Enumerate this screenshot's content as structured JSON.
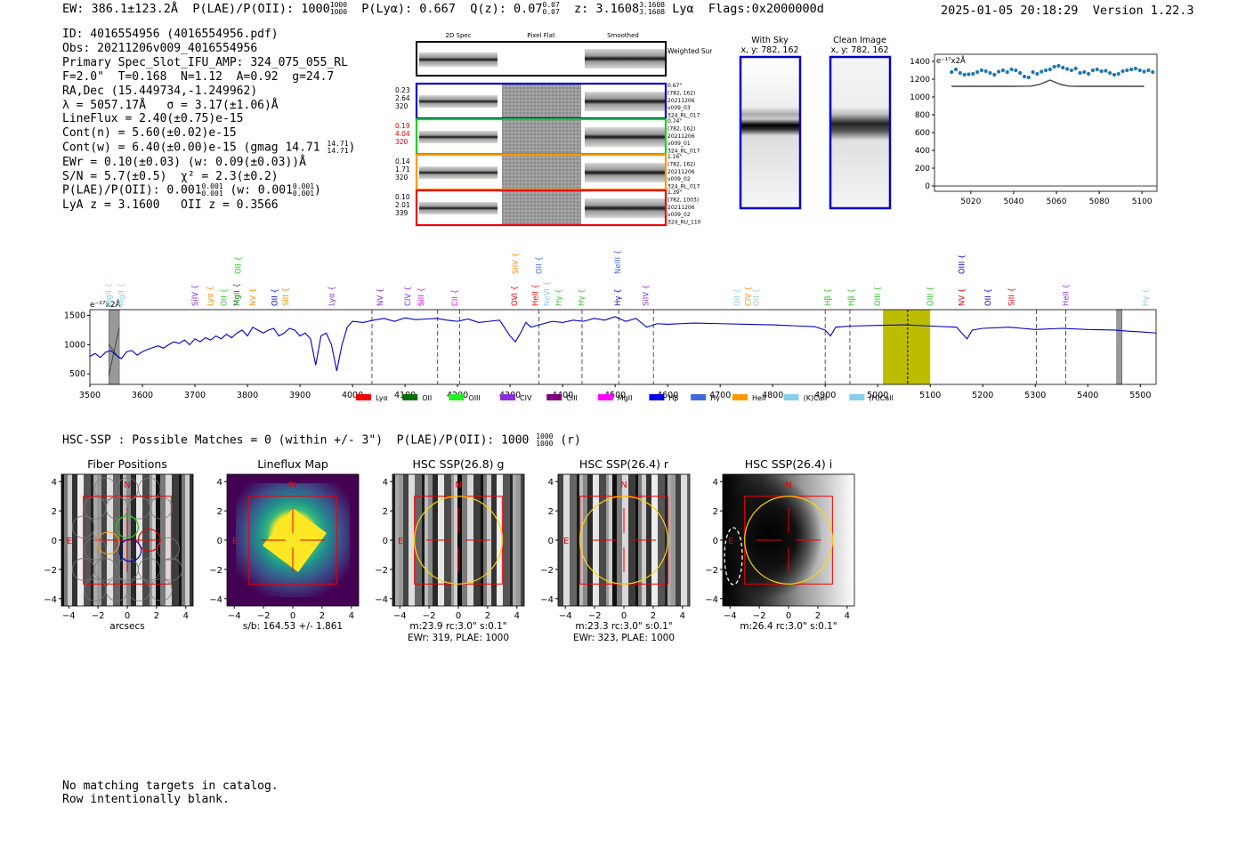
{
  "header": {
    "ew": "EW: 386.1±123.2Å",
    "plae_label": "P(LAE)/P(OII): 1000",
    "plae_hi": "1000",
    "plae_lo": "1000",
    "plya": "P(Lyα): 0.667",
    "qz_label": "Q(z): 0.07",
    "qz_hi": "0.07",
    "qz_lo": "0.07",
    "z_label": "z: 3.1608",
    "z_hi": "3.1608",
    "z_lo": "3.1608",
    "z_line": "Lyα",
    "flags": "Flags:0x2000000d",
    "timestamp": "2025-01-05 20:18:29",
    "version": "Version 1.22.3"
  },
  "info": {
    "id": "ID: 4016554956 (4016554956.pdf)",
    "obs": "Obs: 20211206v009_4016554956",
    "primary": "Primary Spec_Slot_IFU_AMP: 324_075_055_RL",
    "fwhm": "F=2.0\"  T=0.168  N=1.12  A=0.92  g=24.7",
    "radec": "RA,Dec (15.449734,-1.249962)",
    "lambda": "λ = 5057.17Å   σ = 3.17(±1.06)Å",
    "lineflux": "LineFlux = 2.40(±0.75)e-15",
    "contn": "Cont(n) = 5.60(±0.02)e-15",
    "contw": "Cont(w) = 6.40(±0.00)e-15 (gmag 14.71",
    "contw_hi": "14.71",
    "contw_lo": "14.71",
    "contw_end": ")",
    "ewr": "EWr = 0.10(±0.03) (w: 0.09(±0.03))Å",
    "sn": "S/N = 5.7(±0.5)  χ² = 2.3(±0.2)",
    "plae2": "P(LAE)/P(OII): 0.001",
    "plae2_hi": "0.001",
    "plae2_lo": "0.001",
    "plae2_w": "(w: 0.001",
    "plae2_w_hi": "0.001",
    "plae2_w_lo": "0.001",
    "plae2_end": ")",
    "lyaz": "LyA z = 3.1600   OII z = 0.3566"
  },
  "cutouts": {
    "col_headers": [
      "2D Spec",
      "Pixel Flat",
      "Smoothed"
    ],
    "weighted_sum": "Weighted Sum",
    "rows": [
      {
        "left": [
          "0.23",
          "2.64",
          "320"
        ],
        "left_color": "#000000",
        "border": "#0000cc",
        "right": [
          "0.67\"",
          "(782, 162)",
          "20211206",
          "v009_03",
          "324_RL_017"
        ]
      },
      {
        "left": [
          "0.19",
          "4.04",
          "320"
        ],
        "left_color": "#dd0000",
        "border": "#22cc22",
        "right": [
          "0.74\"",
          "(782, 162)",
          "20211206",
          "v009_01",
          "324_RL_017"
        ]
      },
      {
        "left": [
          "0.14",
          "1.71",
          "320"
        ],
        "left_color": "#000000",
        "border": "#ff9900",
        "right": [
          "1.16\"",
          "(782, 162)",
          "20211206",
          "v009_02",
          "324_RL_017"
        ]
      },
      {
        "left": [
          "0.10",
          "2.01",
          "339"
        ],
        "left_color": "#000000",
        "border": "#ee0000",
        "right": [
          "1.39\"",
          "(782, 1003)",
          "20211206",
          "v009_02",
          "324_RU_110"
        ]
      }
    ]
  },
  "sky_panels": [
    {
      "title": "With Sky",
      "sub": "x, y: 782, 162"
    },
    {
      "title": "Clean Image",
      "sub": "x, y: 782, 162"
    }
  ],
  "chart_data": [
    {
      "type": "line",
      "title": "",
      "ylabel": "e⁻¹⁷x2Å",
      "xlim": [
        5003,
        5107
      ],
      "ylim": [
        -60,
        1480
      ],
      "yticks": [
        0,
        200,
        400,
        600,
        800,
        1000,
        1200,
        1400
      ],
      "xticks": [
        5020,
        5040,
        5060,
        5080,
        5100
      ],
      "series": [
        {
          "name": "data points",
          "style": "scatter",
          "color": "#1f77b4",
          "x": [
            5011,
            5013,
            5015,
            5017,
            5019,
            5021,
            5023,
            5025,
            5027,
            5029,
            5031,
            5033,
            5035,
            5037,
            5039,
            5041,
            5043,
            5045,
            5047,
            5049,
            5051,
            5053,
            5055,
            5057,
            5059,
            5061,
            5063,
            5065,
            5067,
            5069,
            5071,
            5073,
            5075,
            5077,
            5079,
            5081,
            5083,
            5085,
            5087,
            5089,
            5091,
            5093,
            5095,
            5097,
            5099,
            5101,
            5103,
            5105
          ],
          "values": [
            1280,
            1310,
            1270,
            1250,
            1255,
            1260,
            1280,
            1300,
            1290,
            1270,
            1250,
            1285,
            1300,
            1280,
            1310,
            1300,
            1270,
            1230,
            1220,
            1280,
            1260,
            1285,
            1300,
            1310,
            1340,
            1350,
            1330,
            1315,
            1300,
            1320,
            1270,
            1280,
            1260,
            1300,
            1310,
            1290,
            1295,
            1270,
            1250,
            1260,
            1290,
            1300,
            1310,
            1320,
            1300,
            1285,
            1300,
            1280
          ]
        },
        {
          "name": "model",
          "style": "line",
          "color": "#444444",
          "x": [
            5011,
            5040,
            5048,
            5052,
            5055,
            5057,
            5059,
            5062,
            5066,
            5070,
            5101
          ],
          "values": [
            1120,
            1120,
            1122,
            1140,
            1170,
            1190,
            1170,
            1140,
            1122,
            1120,
            1120
          ]
        }
      ]
    },
    {
      "type": "line",
      "title": "",
      "ylabel": "e⁻¹⁷x2Å",
      "xlim": [
        3500,
        5530
      ],
      "ylim": [
        320,
        1600
      ],
      "yticks": [
        500,
        1000,
        1500
      ],
      "xticks": [
        3500,
        3600,
        3700,
        3800,
        3900,
        4000,
        4100,
        4200,
        4300,
        4400,
        4500,
        4600,
        4700,
        4800,
        4900,
        5000,
        5100,
        5200,
        5300,
        5400,
        5500
      ],
      "highlight_range": [
        5010,
        5100
      ],
      "highlight_center": 5057,
      "gray_bands": [
        [
          3536,
          3556
        ],
        [
          5455,
          5465
        ]
      ],
      "dashed_lines": [
        4037,
        4162,
        4204,
        4355,
        4437,
        4507,
        4573,
        4900,
        4947,
        5302,
        5358
      ],
      "series": [
        {
          "name": "spectrum",
          "color": "#0000cc",
          "x": [
            3500,
            3510,
            3520,
            3530,
            3540,
            3550,
            3560,
            3570,
            3580,
            3590,
            3600,
            3610,
            3620,
            3630,
            3640,
            3650,
            3660,
            3670,
            3680,
            3690,
            3700,
            3710,
            3720,
            3730,
            3740,
            3750,
            3760,
            3770,
            3780,
            3790,
            3800,
            3810,
            3820,
            3830,
            3840,
            3850,
            3860,
            3870,
            3880,
            3890,
            3900,
            3910,
            3920,
            3930,
            3940,
            3950,
            3960,
            3970,
            3980,
            3990,
            4000,
            4020,
            4040,
            4060,
            4080,
            4100,
            4120,
            4140,
            4160,
            4180,
            4200,
            4220,
            4240,
            4260,
            4280,
            4300,
            4310,
            4320,
            4330,
            4340,
            4360,
            4380,
            4400,
            4420,
            4440,
            4460,
            4480,
            4500,
            4520,
            4540,
            4560,
            4580,
            4600,
            4650,
            4700,
            4750,
            4800,
            4850,
            4880,
            4900,
            4910,
            4920,
            4950,
            5000,
            5050,
            5100,
            5150,
            5170,
            5180,
            5200,
            5250,
            5300,
            5350,
            5400,
            5450,
            5480,
            5500,
            5530
          ],
          "values": [
            800,
            850,
            780,
            870,
            900,
            820,
            760,
            880,
            900,
            820,
            880,
            920,
            950,
            980,
            940,
            1000,
            1050,
            1020,
            1080,
            1000,
            1100,
            1050,
            1120,
            1080,
            1150,
            1100,
            1180,
            1120,
            1200,
            1250,
            1150,
            1300,
            1250,
            1200,
            1250,
            1280,
            1150,
            1200,
            1280,
            1250,
            1150,
            1200,
            1100,
            650,
            1150,
            1200,
            1000,
            550,
            1000,
            1300,
            1400,
            1380,
            1420,
            1450,
            1400,
            1460,
            1430,
            1440,
            1450,
            1420,
            1400,
            1440,
            1380,
            1400,
            1420,
            1150,
            1050,
            1200,
            1380,
            1300,
            1350,
            1400,
            1380,
            1420,
            1400,
            1450,
            1420,
            1480,
            1400,
            1450,
            1300,
            1360,
            1350,
            1370,
            1360,
            1350,
            1340,
            1320,
            1310,
            1250,
            1150,
            1300,
            1320,
            1330,
            1340,
            1320,
            1300,
            1100,
            1250,
            1280,
            1300,
            1260,
            1280,
            1260,
            1250,
            1230,
            1220,
            1200
          ]
        }
      ],
      "line_markers": [
        {
          "label": "MgII",
          "x": 3536,
          "color": "#87ceeb",
          "row": 1
        },
        {
          "label": "MgII",
          "x": 3560,
          "color": "#87ceeb",
          "row": 1
        },
        {
          "label": "SiIV",
          "x": 3700,
          "color": "#8a2be2",
          "row": 1
        },
        {
          "label": "Lyα",
          "x": 3729,
          "color": "#ff8c00",
          "row": 1
        },
        {
          "label": "OII",
          "x": 3755,
          "color": "#22cc22",
          "row": 1
        },
        {
          "label": "MgII",
          "x": 3780,
          "color": "#008000",
          "row": 1
        },
        {
          "label": "OII",
          "x": 3782,
          "color": "#22cc22",
          "row": 0
        },
        {
          "label": "NV",
          "x": 3810,
          "color": "#ff8c00",
          "row": 1
        },
        {
          "label": "OII",
          "x": 3852,
          "color": "#0000cc",
          "row": 1
        },
        {
          "label": "SiII",
          "x": 3873,
          "color": "#ff8c00",
          "row": 1
        },
        {
          "label": "Lyα",
          "x": 3960,
          "color": "#8a2be2",
          "row": 1
        },
        {
          "label": "NV",
          "x": 4052,
          "color": "#8a2be2",
          "row": 1
        },
        {
          "label": "CIV",
          "x": 4105,
          "color": "#8a2be2",
          "row": 1
        },
        {
          "label": "SiII",
          "x": 4130,
          "color": "#ff00ff",
          "row": 1
        },
        {
          "label": "CII",
          "x": 4195,
          "color": "#ff00ff",
          "row": 1
        },
        {
          "label": "SiIV",
          "x": 4310,
          "color": "#ff8c00",
          "row": 0
        },
        {
          "label": "OVI",
          "x": 4308,
          "color": "#ee0000",
          "row": 1
        },
        {
          "label": "OII",
          "x": 4355,
          "color": "#4169e1",
          "row": 0
        },
        {
          "label": "HeII",
          "x": 4348,
          "color": "#ee0000",
          "row": 1
        },
        {
          "label": "NeVI",
          "x": 4370,
          "color": "#87ceeb",
          "row": 1
        },
        {
          "label": "Hγ",
          "x": 4392,
          "color": "#22cc22",
          "row": 1
        },
        {
          "label": "Hγ",
          "x": 4435,
          "color": "#22cc22",
          "row": 1
        },
        {
          "label": "NeIII",
          "x": 4505,
          "color": "#4169e1",
          "row": 0
        },
        {
          "label": "Hγ",
          "x": 4505,
          "color": "#0000cc",
          "row": 1
        },
        {
          "label": "SiIV",
          "x": 4558,
          "color": "#8a2be2",
          "row": 1
        },
        {
          "label": "OII",
          "x": 4732,
          "color": "#87ceeb",
          "row": 1
        },
        {
          "label": "CIV",
          "x": 4753,
          "color": "#ff8c00",
          "row": 1
        },
        {
          "label": "OII",
          "x": 4768,
          "color": "#87ceeb",
          "row": 1
        },
        {
          "label": "Hβ",
          "x": 4905,
          "color": "#22cc22",
          "row": 1
        },
        {
          "label": "Hβ",
          "x": 4950,
          "color": "#22cc22",
          "row": 1
        },
        {
          "label": "OIII",
          "x": 5000,
          "color": "#22cc22",
          "row": 1
        },
        {
          "label": "OIII",
          "x": 5100,
          "color": "#22cc22",
          "row": 1
        },
        {
          "label": "OIII",
          "x": 5160,
          "color": "#0000cc",
          "row": 0
        },
        {
          "label": "NV",
          "x": 5160,
          "color": "#ee0000",
          "row": 1
        },
        {
          "label": "OII",
          "x": 5210,
          "color": "#0000cc",
          "row": 1
        },
        {
          "label": "SiII",
          "x": 5255,
          "color": "#ee0000",
          "row": 1
        },
        {
          "label": "HeII",
          "x": 5358,
          "color": "#8a2be2",
          "row": 1
        },
        {
          "label": "Hγ",
          "x": 5510,
          "color": "#87ceeb",
          "row": 1
        }
      ],
      "legend": [
        {
          "label": "Lyα",
          "color": "#ee0000"
        },
        {
          "label": "OII",
          "color": "#007000"
        },
        {
          "label": "OIII",
          "color": "#22ee22"
        },
        {
          "label": "CIV",
          "color": "#8a2be2"
        },
        {
          "label": "CIII",
          "color": "#800080"
        },
        {
          "label": "MgII",
          "color": "#ff00ff"
        },
        {
          "label": "Hβ",
          "color": "#0000ee"
        },
        {
          "label": "Hγ",
          "color": "#4169e1"
        },
        {
          "label": "HeII",
          "color": "#ff9900"
        },
        {
          "label": "(K)CaII",
          "color": "#87ceeb"
        },
        {
          "label": "(H)CaII",
          "color": "#87ceeb"
        }
      ]
    }
  ],
  "hsc_title": "HSC-SSP : Possible Matches = 0 (within +/- 3\")  P(LAE)/P(OII): 1000",
  "hsc_title_hi": "1000",
  "hsc_title_lo": "1000",
  "hsc_title_end": "(r)",
  "imaging": {
    "ticks": [
      "−4",
      "−2",
      "0",
      "2",
      "4"
    ],
    "compass_n": "N",
    "compass_e": "E",
    "panels": [
      {
        "title": "Fiber Positions",
        "bg": "stripes",
        "cap1": "arcsecs",
        "cap2": ""
      },
      {
        "title": "Lineflux Map",
        "bg": "viridis",
        "cap1": "s/b: 164.53 +/- 1.861",
        "cap2": ""
      },
      {
        "title": "HSC SSP(26.8) g",
        "bg": "stripes",
        "cap1": "m:23.9 rc:3.0\"  s:0.1\"",
        "cap2": "EWr: 319, PLAE: 1000"
      },
      {
        "title": "HSC SSP(26.4) r",
        "bg": "stripes",
        "cap1": "m:23.3 rc:3.0\"  s:0.1\"",
        "cap2": "EWr: 323, PLAE: 1000"
      },
      {
        "title": "HSC SSP(26.4) i",
        "bg": "gradient",
        "cap1": "m:26.4 rc:3.0\"  s:0.1\"",
        "cap2": ""
      }
    ]
  },
  "footer": {
    "line1": "No matching targets in catalog.",
    "line2": "Row intentionally blank."
  }
}
